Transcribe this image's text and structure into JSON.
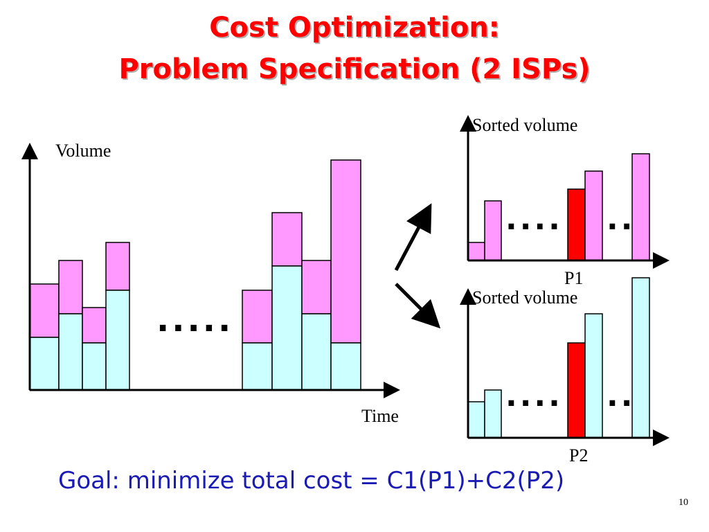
{
  "title": {
    "line1": "Cost Optimization:",
    "line2": "Problem Specification (2 ISPs)"
  },
  "colors": {
    "title": "#ff0000",
    "goal": "#1a1ab4",
    "isp1": "#ff99ff",
    "isp2": "#ccffff",
    "percentile": "#ff0000"
  },
  "main_chart": {
    "y_label": "Volume",
    "x_label": "Time",
    "ellipsis": "....."
  },
  "top_chart": {
    "y_label": "Sorted volume",
    "marker_label": "P1",
    "ellipsis_left": "....",
    "ellipsis_right": ".."
  },
  "bottom_chart": {
    "y_label": "Sorted volume",
    "marker_label": "P2",
    "ellipsis_left": "....",
    "ellipsis_right": ".."
  },
  "goal": "Goal: minimize total cost = C1(P1)+C2(P2)",
  "page_number": "10"
}
